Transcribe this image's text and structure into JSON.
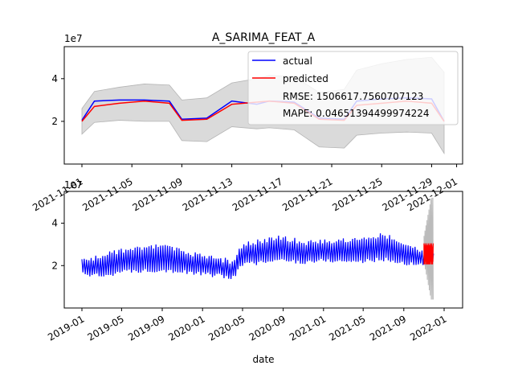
{
  "chart_data": [
    {
      "type": "line",
      "title": "A_SARIMA_FEAT_A",
      "y_offset_label": "1e7",
      "x_tick_labels": [
        "2021-11-01",
        "2021-11-05",
        "2021-11-09",
        "2021-11-13",
        "2021-11-17",
        "2021-11-21",
        "2021-11-25",
        "2021-11-29",
        "2021-12-01"
      ],
      "y_tick_labels": [
        "2",
        "4"
      ],
      "ylim": [
        0.0,
        5.5
      ],
      "legend_position": "top-right",
      "legend": {
        "actual": "actual",
        "predicted": "predicted",
        "rmse": "RMSE: 1506617.7560707123",
        "mape": "MAPE: 0.04651394499974224"
      },
      "x": [
        "2021-11-01",
        "2021-11-02",
        "2021-11-04",
        "2021-11-06",
        "2021-11-08",
        "2021-11-09",
        "2021-11-11",
        "2021-11-13",
        "2021-11-15",
        "2021-11-16",
        "2021-11-18",
        "2021-11-20",
        "2021-11-22",
        "2021-11-23",
        "2021-11-25",
        "2021-11-27",
        "2021-11-29",
        "2021-11-30"
      ],
      "actual": [
        2.05,
        2.95,
        3.0,
        3.0,
        2.95,
        2.1,
        2.15,
        2.95,
        2.8,
        2.95,
        2.9,
        2.15,
        2.1,
        2.95,
        3.05,
        3.1,
        3.05,
        2.0
      ],
      "predicted": [
        2.0,
        2.7,
        2.85,
        2.95,
        2.85,
        2.05,
        2.1,
        2.8,
        2.9,
        2.95,
        2.85,
        2.1,
        2.05,
        2.75,
        2.85,
        2.95,
        2.85,
        2.0
      ],
      "ci_upper": [
        2.6,
        3.4,
        3.6,
        3.75,
        3.7,
        3.0,
        3.1,
        3.8,
        4.0,
        4.15,
        4.1,
        3.35,
        3.5,
        4.4,
        4.7,
        4.9,
        5.0,
        4.3
      ],
      "ci_lower": [
        1.4,
        1.95,
        2.05,
        2.0,
        2.0,
        1.1,
        1.05,
        1.75,
        1.65,
        1.7,
        1.6,
        0.8,
        0.75,
        1.35,
        1.45,
        1.5,
        1.45,
        0.5
      ],
      "colors": {
        "actual": "#0000ff",
        "predicted": "#ff0000",
        "band": "#d9d9d9"
      }
    },
    {
      "type": "line",
      "xlabel": "date",
      "y_offset_label": "1e7",
      "x_tick_labels": [
        "2019-01",
        "2019-05",
        "2019-09",
        "2020-01",
        "2020-05",
        "2020-09",
        "2021-01",
        "2021-05",
        "2021-09",
        "2022-01"
      ],
      "y_tick_labels": [
        "2",
        "4"
      ],
      "ylim": [
        0.0,
        5.5
      ],
      "actual_envelope": {
        "x": [
          "2019-01-01",
          "2019-03-01",
          "2019-05-01",
          "2019-07-01",
          "2019-09-01",
          "2019-11-01",
          "2020-01-01",
          "2020-03-01",
          "2020-04-01",
          "2020-05-01",
          "2020-07-01",
          "2020-09-01",
          "2020-11-01",
          "2021-01-01",
          "2021-03-01",
          "2021-05-01",
          "2021-07-01",
          "2021-09-01",
          "2021-10-15",
          "2021-12-01"
        ],
        "upper": [
          2.3,
          2.6,
          2.85,
          2.95,
          3.05,
          2.8,
          2.55,
          2.4,
          2.3,
          3.1,
          3.3,
          3.45,
          3.2,
          3.3,
          3.3,
          3.4,
          3.6,
          3.1,
          2.9,
          2.7
        ],
        "lower": [
          1.5,
          1.4,
          1.6,
          1.65,
          1.7,
          1.6,
          1.5,
          1.4,
          1.3,
          1.95,
          2.05,
          2.15,
          2.05,
          2.15,
          2.1,
          2.1,
          2.2,
          2.0,
          1.95,
          2.0
        ]
      },
      "predicted_range": {
        "start": "2021-11-01",
        "end": "2021-11-30",
        "upper": 3.05,
        "lower": 2.0
      },
      "ci_range": {
        "start": "2021-11-01",
        "end": "2021-11-30",
        "upper": 5.2,
        "lower": 0.4
      },
      "colors": {
        "actual": "#0000ff",
        "predicted": "#ff0000",
        "band": "#bbbbbb"
      }
    }
  ]
}
